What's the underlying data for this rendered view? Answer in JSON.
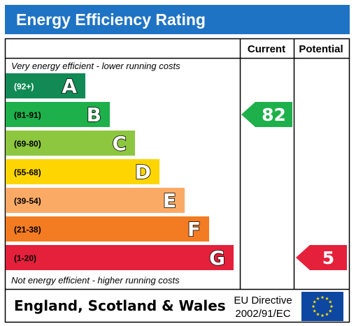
{
  "header": {
    "title": "Energy Efficiency Rating"
  },
  "columns": {
    "current": "Current",
    "potential": "Potential"
  },
  "top_note": "Very energy efficient - lower running costs",
  "bottom_note": "Not energy efficient - higher running costs",
  "footer": {
    "region": "England, Scotland & Wales",
    "directive_line1": "EU Directive",
    "directive_line2": "2002/91/EC"
  },
  "colors": {
    "header": "#1f73c4",
    "A": "#118a55",
    "B": "#1eb04a",
    "C": "#8dc63f",
    "D": "#ffd500",
    "E": "#fbaa65",
    "F": "#f37b21",
    "G": "#e4203b",
    "eu_flag": "#0d47a1",
    "eu_stars": "#ffdd00"
  },
  "chart_data": {
    "type": "bar",
    "title": "Energy Efficiency Rating",
    "categories": [
      "A",
      "B",
      "C",
      "D",
      "E",
      "F",
      "G"
    ],
    "ranges": [
      "(92+)",
      "(81-91)",
      "(69-80)",
      "(55-68)",
      "(39-54)",
      "(21-38)",
      "(1-20)"
    ],
    "current": {
      "label": "Current",
      "value": 82,
      "band": "B"
    },
    "potential": {
      "label": "Potential",
      "value": 5,
      "band": "G"
    }
  }
}
